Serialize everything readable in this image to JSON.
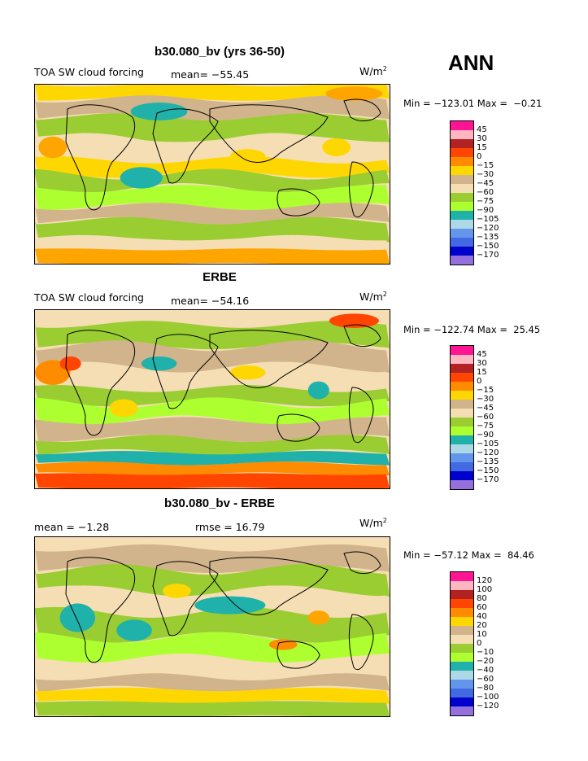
{
  "season": "ANN",
  "units": "W/m",
  "units_sup": "2",
  "panels": [
    {
      "title": "b30.080_bv (yrs 36-50)",
      "field": "TOA SW cloud forcing",
      "stat_left": "",
      "stat": "mean= −55.45",
      "minmax": "Min = −123.01 Max =  −0.21",
      "levels": [
        "45",
        "30",
        "15",
        "0",
        "−15",
        "−30",
        "−45",
        "−60",
        "−75",
        "−90",
        "−105",
        "−120",
        "−135",
        "−150",
        "−170"
      ]
    },
    {
      "title": "ERBE",
      "field": "TOA SW cloud forcing",
      "stat_left": "",
      "stat": "mean= −54.16",
      "minmax": "Min = −122.74 Max =  25.45",
      "levels": [
        "45",
        "30",
        "15",
        "0",
        "−15",
        "−30",
        "−45",
        "−60",
        "−75",
        "−90",
        "−105",
        "−120",
        "−135",
        "−150",
        "−170"
      ]
    },
    {
      "title": "b30.080_bv - ERBE",
      "field": "",
      "stat_left": "mean =  −1.28",
      "stat": "rmse =  16.79",
      "minmax": "Min = −57.12 Max =  84.46",
      "levels": [
        "120",
        "100",
        "80",
        "60",
        "40",
        "20",
        "10",
        "0",
        "−10",
        "−20",
        "−40",
        "−60",
        "−80",
        "−100",
        "−120"
      ]
    }
  ],
  "colors": {
    "palette": [
      "#ff1493",
      "#ffb6c1",
      "#b22222",
      "#ff4500",
      "#ff8c00",
      "#ffd700",
      "#d2b48c",
      "#f5deb3",
      "#9acd32",
      "#adff2f",
      "#20b2aa",
      "#add8e6",
      "#6495ed",
      "#4169e1",
      "#0000cd",
      "#9370db"
    ]
  }
}
